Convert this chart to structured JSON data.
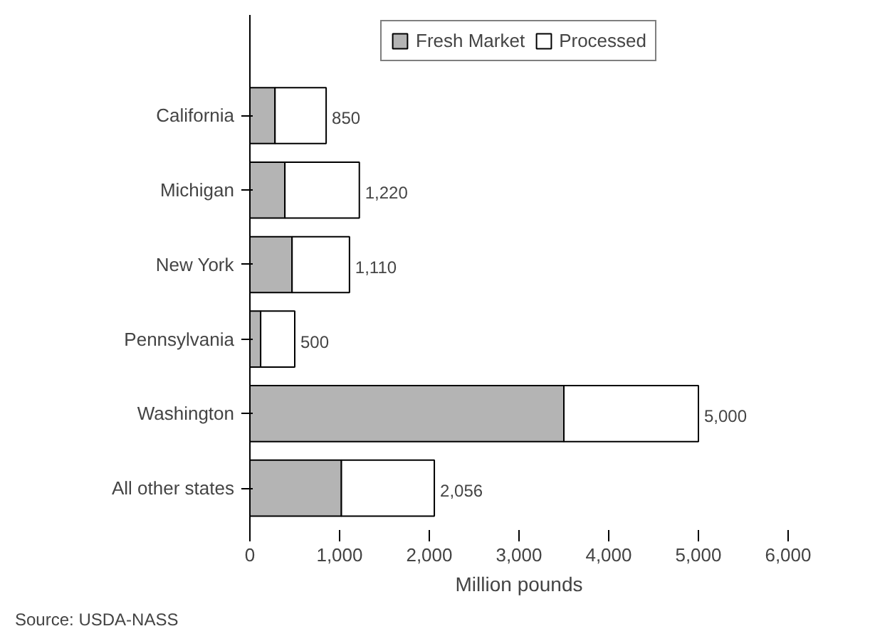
{
  "chart_data": {
    "type": "bar",
    "orientation": "horizontal",
    "stacked": true,
    "categories": [
      "California",
      "Michigan",
      "New York",
      "Pennsylvania",
      "Washington",
      "All other states"
    ],
    "series": [
      {
        "name": "Fresh Market",
        "color": "#b4b4b4",
        "values": [
          280,
          390,
          470,
          120,
          3500,
          1020
        ]
      },
      {
        "name": "Processed",
        "color": "#ffffff",
        "values": [
          570,
          830,
          640,
          380,
          1500,
          1036
        ]
      }
    ],
    "totals": [
      "850",
      "1,220",
      "1,110",
      "500",
      "5,000",
      "2,056"
    ],
    "xlim": [
      0,
      6000
    ],
    "xticks": [
      {
        "value": 0,
        "label": "0"
      },
      {
        "value": 1000,
        "label": "1,000"
      },
      {
        "value": 2000,
        "label": "2,000"
      },
      {
        "value": 3000,
        "label": "3,000"
      },
      {
        "value": 4000,
        "label": "4,000"
      },
      {
        "value": 5000,
        "label": "5,000"
      },
      {
        "value": 6000,
        "label": "6,000"
      }
    ],
    "xlabel": "Million pounds",
    "legend": "top",
    "grid": false,
    "annotations": [
      "Source: USDA-NASS"
    ]
  }
}
